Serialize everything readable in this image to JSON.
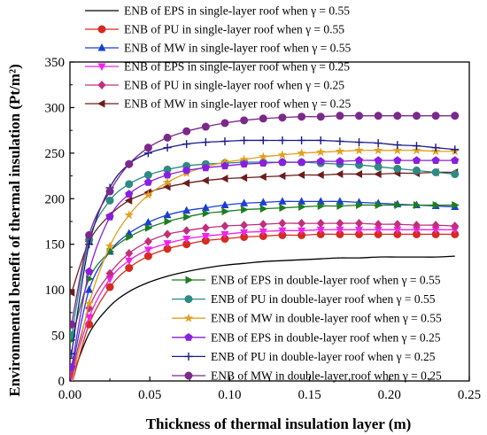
{
  "chart_data": {
    "type": "line",
    "xlabel": "Thickness of thermal insulation layer (m)",
    "ylabel": "Environmental benefit of thermal insulation (Pt/m²)",
    "xlim": [
      0,
      0.25
    ],
    "ylim": [
      0,
      350
    ],
    "x_ticks": [
      "0.00",
      "0.05",
      "0.10",
      "0.15",
      "0.20",
      "0.25"
    ],
    "y_ticks": [
      "0",
      "50",
      "100",
      "150",
      "200",
      "250",
      "300",
      "350"
    ],
    "grid": false,
    "legend_placement": [
      "top-left",
      "bottom-right"
    ],
    "x": [
      0.001,
      0.012,
      0.025,
      0.037,
      0.049,
      0.061,
      0.073,
      0.085,
      0.097,
      0.109,
      0.121,
      0.133,
      0.145,
      0.157,
      0.169,
      0.181,
      0.193,
      0.205,
      0.217,
      0.229,
      0.241
    ],
    "series": [
      {
        "name": "ENB of EPS in single-layer roof when γ = 0.55",
        "color": "#000000",
        "marker": "none",
        "values": [
          2,
          52,
          82,
          98,
          108,
          115,
          120,
          124,
          127,
          129,
          131,
          132,
          133,
          134,
          135,
          135,
          136,
          136,
          136,
          136,
          137
        ]
      },
      {
        "name": "ENB of PU in single-layer roof when γ = 0.55",
        "color": "#d62b1e",
        "marker": "circle",
        "values": [
          -5,
          62,
          103,
          124,
          137,
          145,
          150,
          154,
          156,
          158,
          159,
          160,
          160,
          161,
          161,
          161,
          161,
          161,
          161,
          161,
          161
        ]
      },
      {
        "name": "ENB of MW in single-layer roof when γ = 0.55",
        "color": "#1a3fd6",
        "marker": "triangle-up",
        "values": [
          10,
          100,
          142,
          162,
          174,
          182,
          187,
          190,
          193,
          195,
          196,
          197,
          197,
          197,
          197,
          196,
          195,
          194,
          193,
          192,
          191
        ]
      },
      {
        "name": "ENB of EPS in single-layer roof when γ = 0.25",
        "color": "#ee22ee",
        "marker": "triangle-down",
        "values": [
          5,
          70,
          112,
          132,
          144,
          151,
          156,
          159,
          161,
          163,
          164,
          165,
          165,
          166,
          166,
          166,
          166,
          166,
          166,
          166,
          166
        ]
      },
      {
        "name": "ENB of PU in single-layer roof when γ = 0.25",
        "color": "#c0307a",
        "marker": "diamond",
        "values": [
          8,
          80,
          118,
          140,
          153,
          161,
          165,
          168,
          170,
          171,
          172,
          173,
          173,
          173,
          173,
          173,
          172,
          172,
          171,
          171,
          170
        ]
      },
      {
        "name": "ENB of MW in single-layer roof when γ = 0.25",
        "color": "#6b1d1d",
        "marker": "triangle-left",
        "values": [
          97,
          153,
          182,
          198,
          207,
          213,
          217,
          220,
          222,
          223,
          224,
          225,
          226,
          226,
          227,
          227,
          227,
          228,
          228,
          229,
          229
        ]
      },
      {
        "name": "ENB of EPS in double-layer roof when γ = 0.55",
        "color": "#1e7d1e",
        "marker": "triangle-right",
        "values": [
          45,
          112,
          142,
          158,
          168,
          175,
          180,
          184,
          186,
          188,
          189,
          190,
          191,
          192,
          192,
          193,
          193,
          193,
          193,
          193,
          193
        ]
      },
      {
        "name": "ENB of PU in double-layer roof when γ = 0.55",
        "color": "#2e8a82",
        "marker": "circle",
        "values": [
          50,
          155,
          198,
          216,
          226,
          232,
          236,
          238,
          239,
          240,
          240,
          240,
          240,
          239,
          238,
          237,
          235,
          233,
          231,
          229,
          227
        ]
      },
      {
        "name": "ENB of MW in double-layer roof when γ = 0.55",
        "color": "#e0a020",
        "marker": "star",
        "values": [
          -5,
          85,
          148,
          182,
          204,
          218,
          228,
          235,
          240,
          243,
          246,
          248,
          250,
          251,
          252,
          253,
          253,
          253,
          253,
          252,
          252
        ]
      },
      {
        "name": "ENB of EPS in double-layer roof when γ = 0.25",
        "color": "#8a1ee0",
        "marker": "pentagon",
        "values": [
          15,
          120,
          180,
          205,
          218,
          226,
          231,
          234,
          236,
          238,
          239,
          240,
          240,
          241,
          241,
          242,
          242,
          242,
          242,
          242,
          242
        ]
      },
      {
        "name": "ENB of PU in double-layer roof when γ = 0.25",
        "color": "#1a1a8a",
        "marker": "plus",
        "values": [
          30,
          150,
          212,
          238,
          250,
          256,
          260,
          262,
          263,
          264,
          264,
          264,
          264,
          264,
          263,
          262,
          261,
          259,
          258,
          256,
          254
        ]
      },
      {
        "name": "ENB of MW in double-layer roof when γ = 0.25",
        "color": "#7a2a8a",
        "marker": "circle",
        "values": [
          62,
          160,
          208,
          238,
          256,
          267,
          274,
          279,
          283,
          286,
          288,
          289,
          290,
          290,
          291,
          291,
          291,
          291,
          291,
          291,
          291
        ]
      }
    ]
  }
}
